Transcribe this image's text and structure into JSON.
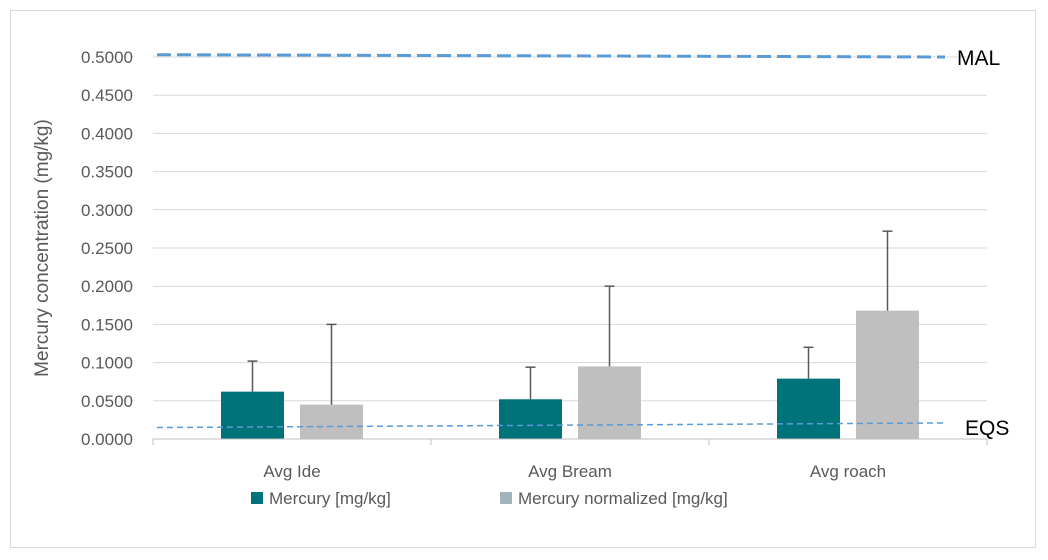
{
  "chart_data": {
    "type": "bar",
    "title": "",
    "xlabel": "",
    "ylabel": "Mercury concentration (mg/kg)",
    "ylim": [
      0,
      0.5
    ],
    "yticks": [
      "0.0000",
      "0.0500",
      "0.1000",
      "0.1500",
      "0.2000",
      "0.2500",
      "0.3000",
      "0.3500",
      "0.4000",
      "0.4500",
      "0.5000"
    ],
    "grid": true,
    "legend_position": "bottom",
    "categories": [
      "Avg Ide",
      "Avg Bream",
      "Avg roach"
    ],
    "series": [
      {
        "name": "Mercury [mg/kg]",
        "color": "#00727a",
        "values": [
          0.062,
          0.052,
          0.079
        ],
        "error_plus": [
          0.04,
          0.042,
          0.041
        ]
      },
      {
        "name": "Mercury normalized [mg/kg]",
        "color": "#bfbfbf",
        "legend_color": "#9fb4bd",
        "values": [
          0.045,
          0.095,
          0.168
        ],
        "error_plus": [
          0.105,
          0.105,
          0.104
        ]
      }
    ],
    "reference_lines": [
      {
        "label": "MAL",
        "y_start": 0.503,
        "y_end": 0.5,
        "color": "#5b9bd5",
        "style": "dashed-thick"
      },
      {
        "label": "EQS",
        "y_start": 0.015,
        "y_end": 0.021,
        "color": "#5b9bd5",
        "style": "dashed-thin"
      }
    ]
  }
}
